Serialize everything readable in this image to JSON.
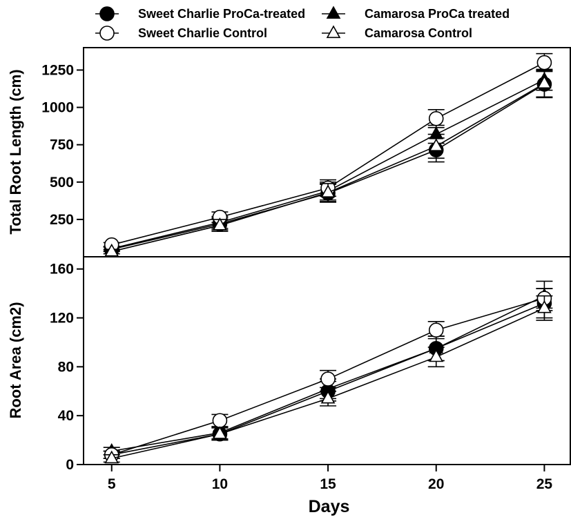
{
  "legend": [
    {
      "label": "Sweet Charlie ProCa-treated",
      "marker": "filled-circle"
    },
    {
      "label": "Camarosa ProCa treated",
      "marker": "filled-triangle"
    },
    {
      "label": "Sweet Charlie Control",
      "marker": "open-circle"
    },
    {
      "label": "Camarosa Control",
      "marker": "open-triangle"
    }
  ],
  "chart_data": [
    {
      "type": "line",
      "panel": "top",
      "ylabel": "Total Root Length (cm)",
      "xlabel": "",
      "x": [
        5,
        10,
        15,
        20,
        25
      ],
      "xlim": [
        3.7,
        26.2
      ],
      "ylim": [
        0,
        1400
      ],
      "yticks": [
        250,
        500,
        750,
        1000,
        1250
      ],
      "series": [
        {
          "name": "Sweet Charlie ProCa-treated",
          "marker": "filled-circle",
          "values": [
            50,
            220,
            425,
            715,
            1155
          ],
          "errors": [
            15,
            40,
            60,
            80,
            90
          ]
        },
        {
          "name": "Camarosa ProCa treated",
          "marker": "filled-triangle",
          "values": [
            55,
            230,
            440,
            820,
            1185
          ],
          "errors": [
            15,
            40,
            60,
            60,
            70
          ]
        },
        {
          "name": "Sweet Charlie Control",
          "marker": "open-circle",
          "values": [
            80,
            265,
            460,
            925,
            1300
          ],
          "errors": [
            15,
            35,
            55,
            60,
            60
          ]
        },
        {
          "name": "Camarosa Control",
          "marker": "open-triangle",
          "values": [
            35,
            210,
            430,
            740,
            1160
          ],
          "errors": [
            15,
            40,
            60,
            80,
            90
          ]
        }
      ]
    },
    {
      "type": "line",
      "panel": "bottom",
      "ylabel": "Root Area (cm2)",
      "xlabel": "Days",
      "x": [
        5,
        10,
        15,
        20,
        25
      ],
      "xlim": [
        3.7,
        26.2
      ],
      "ylim": [
        0,
        170
      ],
      "yticks": [
        0,
        40,
        80,
        120,
        160
      ],
      "xticks": [
        5,
        10,
        15,
        20,
        25
      ],
      "series": [
        {
          "name": "Sweet Charlie ProCa-treated",
          "marker": "filled-circle",
          "values": [
            8,
            25,
            60,
            95,
            132
          ],
          "errors": [
            3,
            5,
            8,
            10,
            12
          ]
        },
        {
          "name": "Camarosa ProCa treated",
          "marker": "filled-triangle",
          "values": [
            11,
            26,
            62,
            95,
            138
          ],
          "errors": [
            3,
            5,
            8,
            10,
            12
          ]
        },
        {
          "name": "Sweet Charlie Control",
          "marker": "open-circle",
          "values": [
            8,
            36,
            70,
            110,
            136
          ],
          "errors": [
            3,
            5,
            7,
            7,
            8
          ]
        },
        {
          "name": "Camarosa Control",
          "marker": "open-triangle",
          "values": [
            5,
            25,
            54,
            88,
            128
          ],
          "errors": [
            3,
            5,
            6,
            8,
            10
          ]
        }
      ]
    }
  ]
}
